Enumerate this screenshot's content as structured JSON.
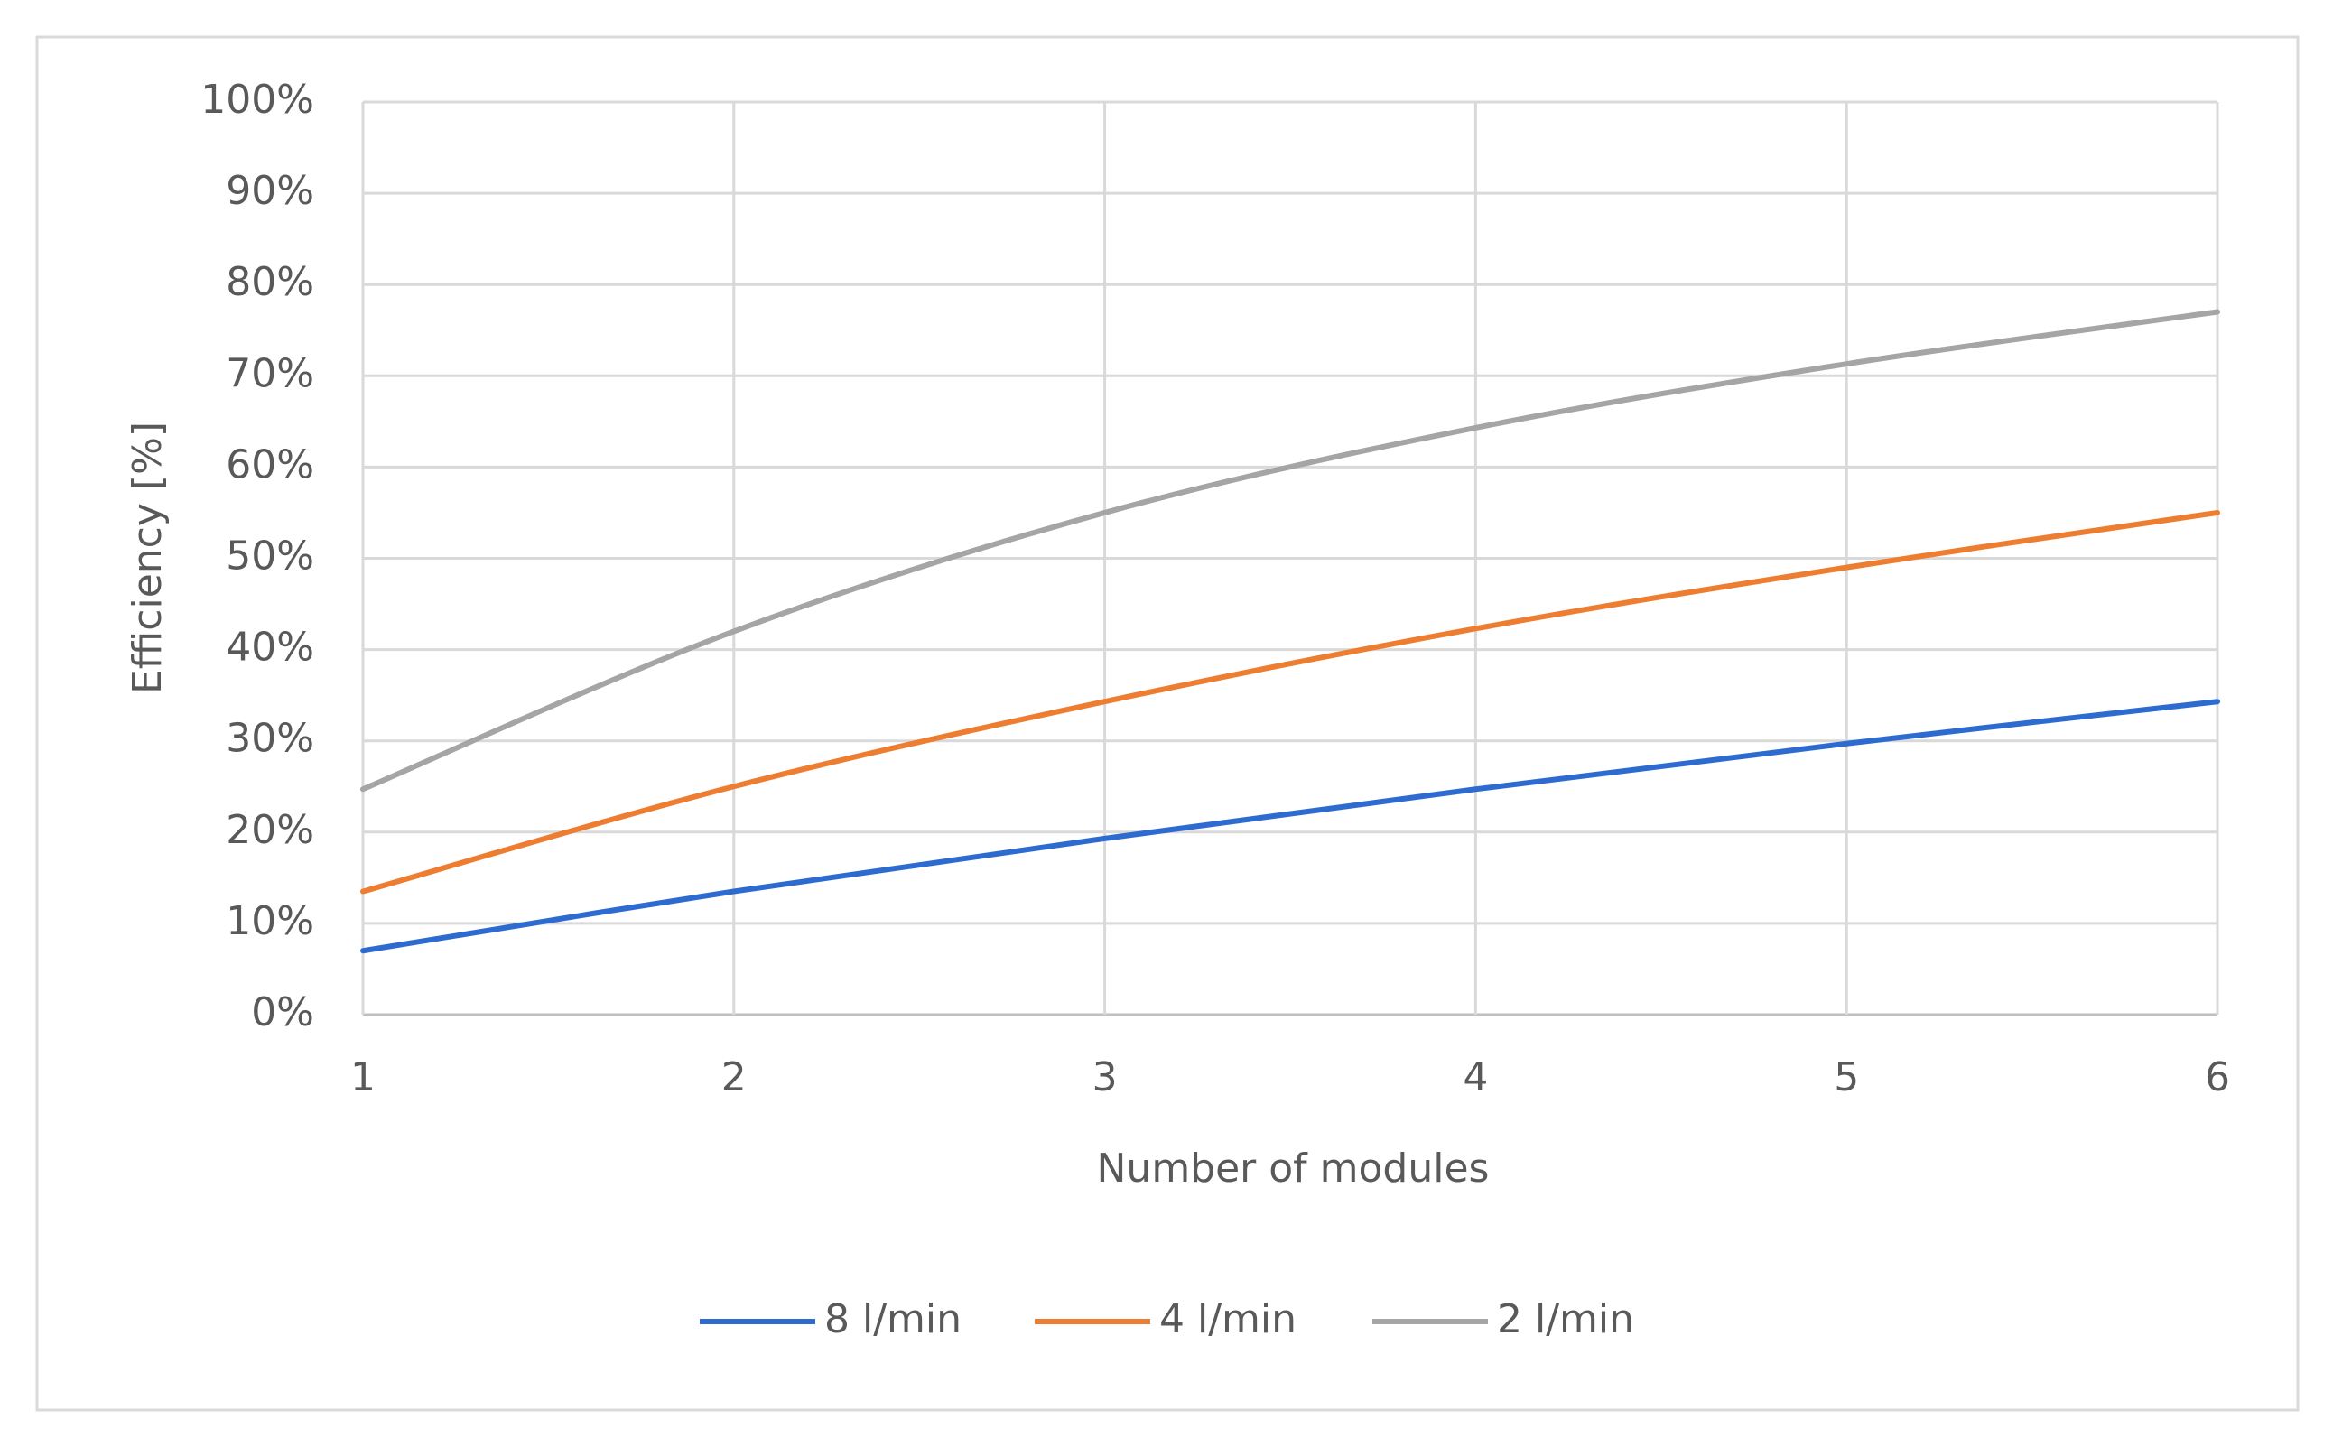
{
  "chart_data": {
    "type": "line",
    "x_label": "Number  of modules",
    "y_label": "Efficiency [%]",
    "x": [
      1,
      2,
      3,
      4,
      5,
      6
    ],
    "xlim": [
      1,
      6
    ],
    "xticks": [
      1,
      2,
      3,
      4,
      5,
      6
    ],
    "ylim": [
      0,
      100
    ],
    "yticks": [
      {
        "value": 0,
        "label": "0%"
      },
      {
        "value": 10,
        "label": "10%"
      },
      {
        "value": 20,
        "label": "20%"
      },
      {
        "value": 30,
        "label": "30%"
      },
      {
        "value": 40,
        "label": "40%"
      },
      {
        "value": 50,
        "label": "50%"
      },
      {
        "value": 60,
        "label": "60%"
      },
      {
        "value": 70,
        "label": "70%"
      },
      {
        "value": 80,
        "label": "80%"
      },
      {
        "value": 90,
        "label": "90%"
      },
      {
        "value": 100,
        "label": "100%"
      }
    ],
    "grid": true,
    "legend": "bottom",
    "series": [
      {
        "name": "8 l/min",
        "color": "#2e6bd0",
        "values": [
          7,
          13.5,
          19.3,
          24.7,
          29.7,
          34.3
        ]
      },
      {
        "name": "4 l/min",
        "color": "#ed7d31",
        "values": [
          13.5,
          25,
          34.3,
          42.3,
          49,
          55
        ]
      },
      {
        "name": "2 l/min",
        "color": "#a5a5a5",
        "values": [
          24.7,
          42,
          55,
          64.3,
          71.3,
          77
        ]
      }
    ]
  }
}
